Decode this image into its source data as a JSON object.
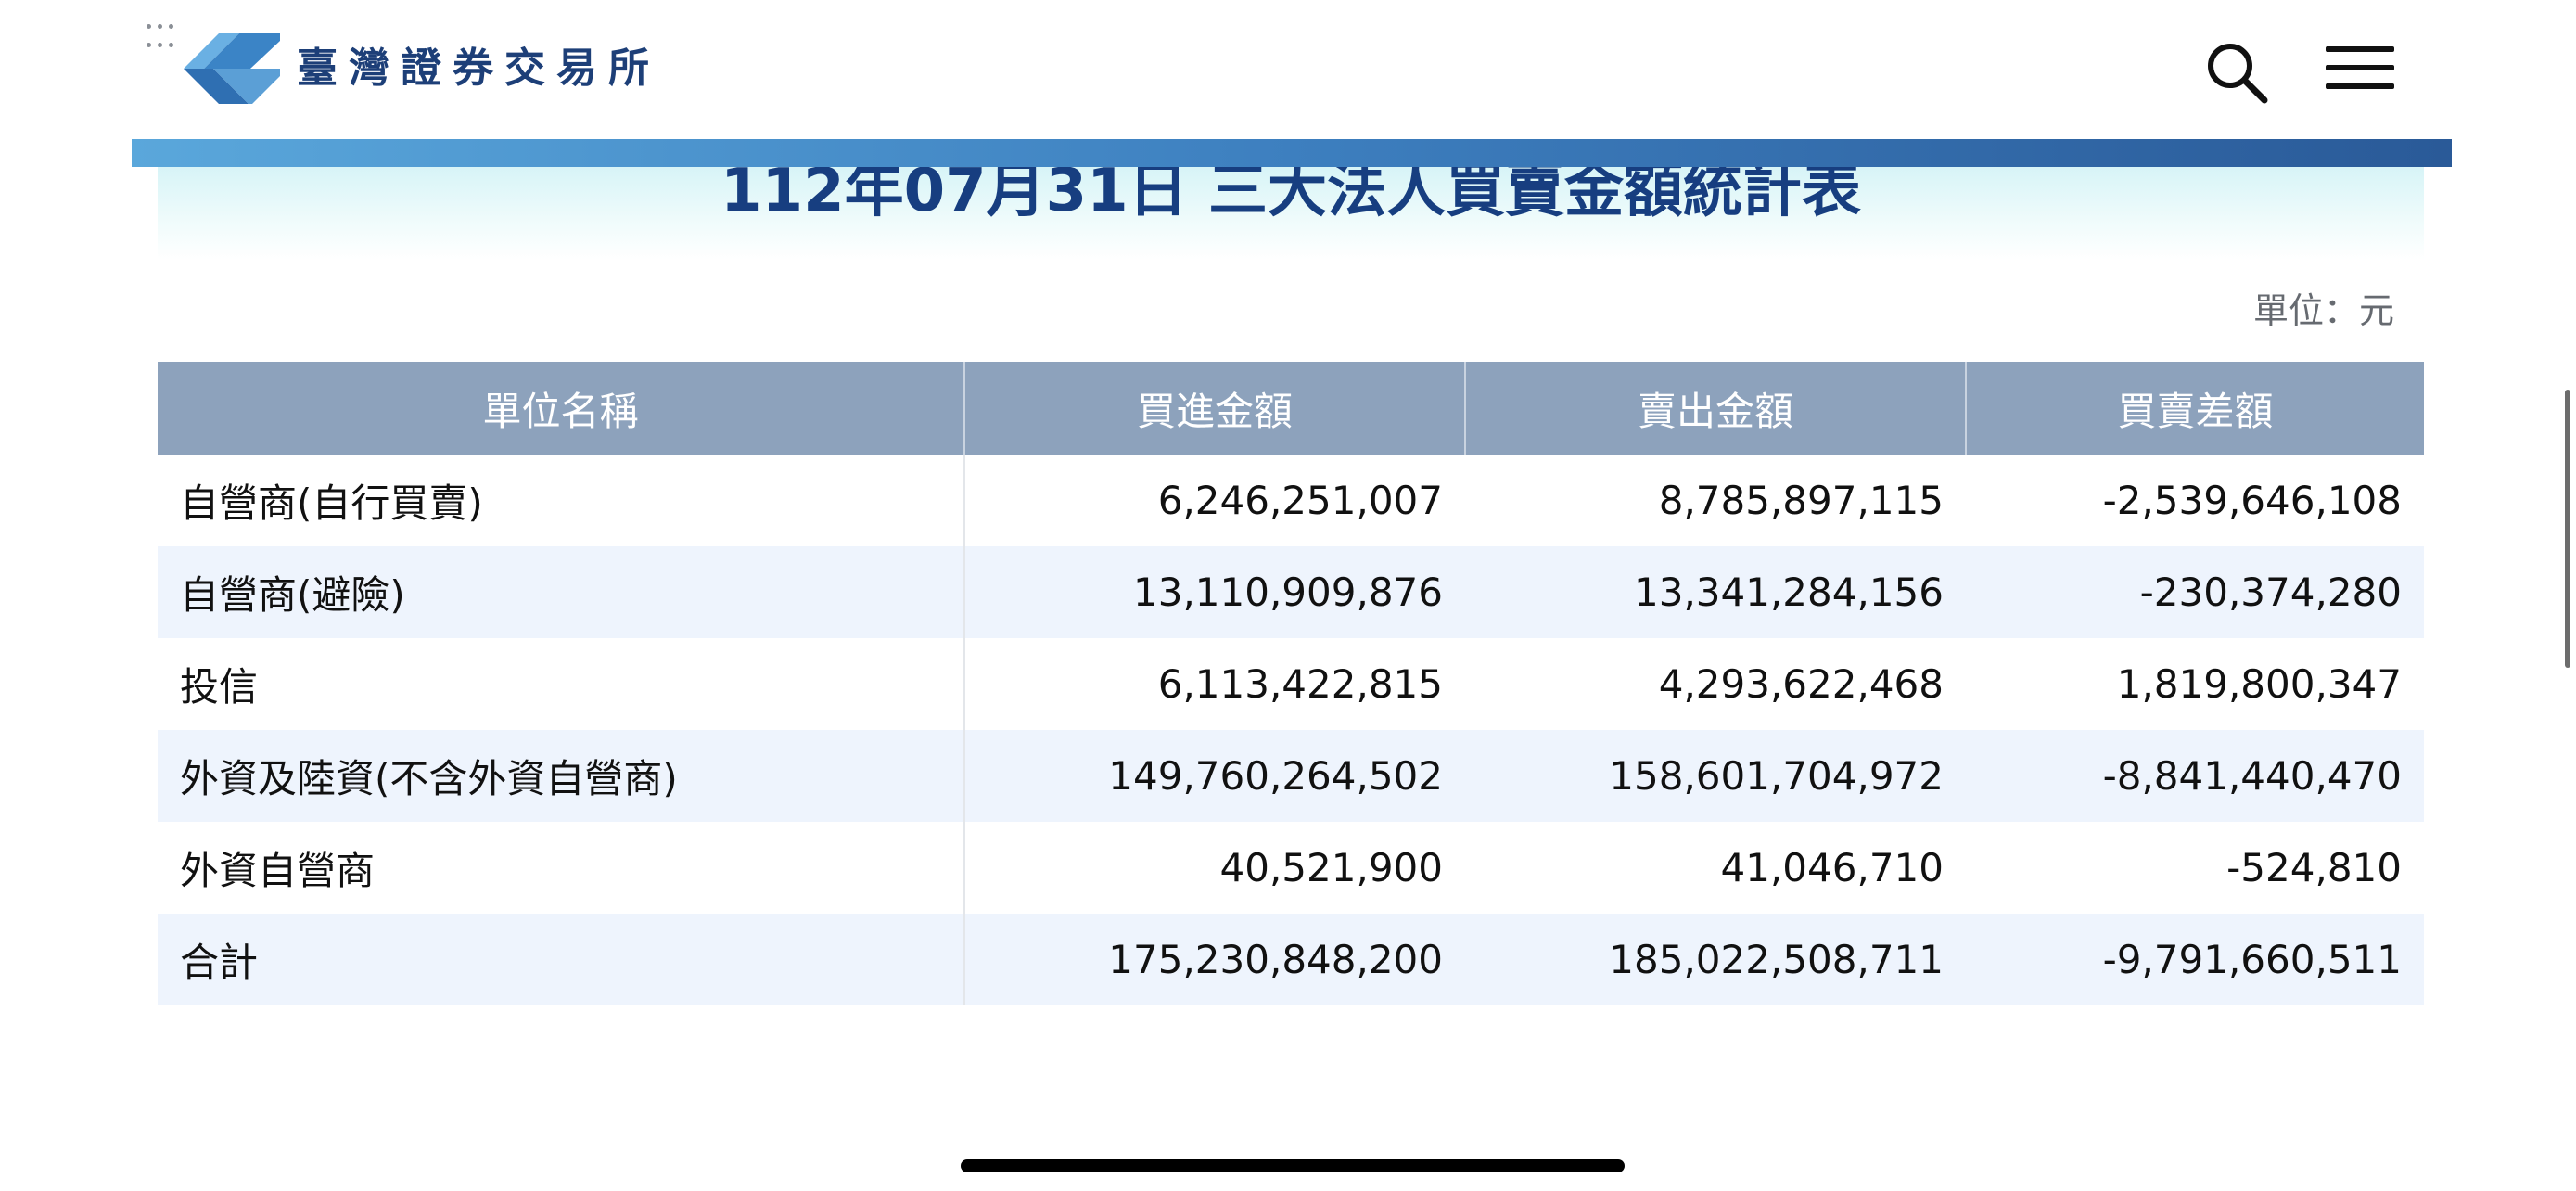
{
  "header": {
    "brand": "臺灣證券交易所",
    "search_icon": "search-icon",
    "menu_icon": "hamburger-menu-icon",
    "logo_icon": "twse-logo-icon"
  },
  "report": {
    "title": "112年07月31日 三大法人買賣金額統計表",
    "unit": "單位：元"
  },
  "table": {
    "columns": [
      "單位名稱",
      "買進金額",
      "賣出金額",
      "買賣差額"
    ],
    "rows": [
      {
        "name": "自營商(自行買賣)",
        "buy": "6,246,251,007",
        "sell": "8,785,897,115",
        "diff": "-2,539,646,108"
      },
      {
        "name": "自營商(避險)",
        "buy": "13,110,909,876",
        "sell": "13,341,284,156",
        "diff": "-230,374,280"
      },
      {
        "name": "投信",
        "buy": "6,113,422,815",
        "sell": "4,293,622,468",
        "diff": "1,819,800,347"
      },
      {
        "name": "外資及陸資(不含外資自營商)",
        "buy": "149,760,264,502",
        "sell": "158,601,704,972",
        "diff": "-8,841,440,470"
      },
      {
        "name": "外資自營商",
        "buy": "40,521,900",
        "sell": "41,046,710",
        "diff": "-524,810"
      },
      {
        "name": "合計",
        "buy": "175,230,848,200",
        "sell": "185,022,508,711",
        "diff": "-9,791,660,511"
      }
    ]
  },
  "colors": {
    "title": "#173e80",
    "header_bg": "#8da2bc",
    "row_alt": "#eef4fd",
    "bar_start": "#5aa7db",
    "bar_end": "#2a5a98"
  }
}
